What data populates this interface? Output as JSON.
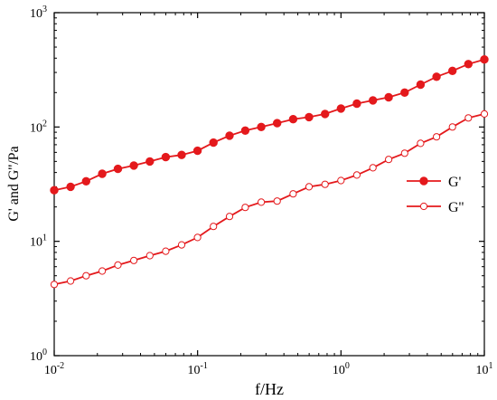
{
  "chart_data": {
    "type": "line",
    "xlabel": "f/Hz",
    "ylabel": "G' and G''/Pa",
    "xscale": "log",
    "yscale": "log",
    "xlim": [
      0.01,
      10
    ],
    "ylim": [
      1,
      1000
    ],
    "grid": false,
    "legend_position": "right",
    "x_ticks": [
      {
        "value": 0.01,
        "base": "10",
        "exp": "-2"
      },
      {
        "value": 0.1,
        "base": "10",
        "exp": "-1"
      },
      {
        "value": 1,
        "base": "10",
        "exp": "0"
      },
      {
        "value": 10,
        "base": "10",
        "exp": "1"
      }
    ],
    "y_ticks": [
      {
        "value": 1,
        "base": "10",
        "exp": "0"
      },
      {
        "value": 10,
        "base": "10",
        "exp": "1"
      },
      {
        "value": 100,
        "base": "10",
        "exp": "2"
      },
      {
        "value": 1000,
        "base": "10",
        "exp": "3"
      }
    ],
    "x": [
      0.01,
      0.013,
      0.0167,
      0.0216,
      0.0278,
      0.0359,
      0.0464,
      0.0599,
      0.0774,
      0.0999,
      0.129,
      0.167,
      0.215,
      0.278,
      0.359,
      0.464,
      0.599,
      0.774,
      1.0,
      1.29,
      1.67,
      2.15,
      2.78,
      3.59,
      4.64,
      5.99,
      7.74,
      10.0
    ],
    "series": [
      {
        "name": "G'",
        "marker": "filled-circle",
        "color": "#e4191c",
        "values": [
          28,
          30,
          33.5,
          39,
          43,
          46,
          50,
          54.5,
          57,
          62,
          73,
          84,
          93,
          100,
          108,
          117,
          122,
          130,
          145,
          160,
          171,
          182,
          200,
          235,
          275,
          310,
          355,
          390
        ]
      },
      {
        "name": "G''",
        "marker": "open-circle",
        "color": "#e4191c",
        "values": [
          4.2,
          4.5,
          5.0,
          5.5,
          6.2,
          6.8,
          7.5,
          8.2,
          9.3,
          10.8,
          13.5,
          16.5,
          19.8,
          22,
          22.5,
          26,
          30,
          31.5,
          34,
          38,
          44,
          52,
          59,
          72,
          82,
          100,
          120,
          130
        ]
      }
    ]
  }
}
